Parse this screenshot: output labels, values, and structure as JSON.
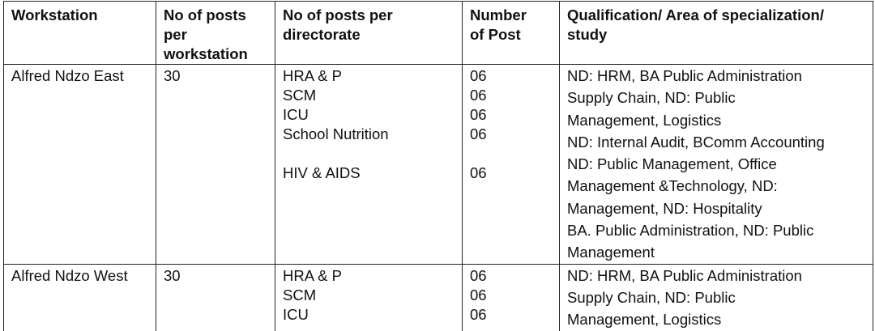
{
  "table": {
    "header": [
      [
        "Workstation"
      ],
      [
        "No of posts",
        "per",
        "workstation"
      ],
      [
        "No of posts per",
        "directorate"
      ],
      [
        "Number",
        "of Post"
      ],
      [
        "Qualification/ Area of specialization/",
        "study"
      ]
    ],
    "rows": [
      {
        "workstation": "Alfred Ndzo East",
        "posts": "30",
        "directorates": [
          "HRA & P",
          "SCM",
          "ICU",
          "School Nutrition",
          "HIV & AIDS"
        ],
        "numbers": [
          "06",
          "06",
          "06",
          "06",
          "06"
        ],
        "qualifications": [
          "ND: HRM, BA Public Administration",
          "Supply Chain, ND: Public",
          "Management, Logistics",
          "ND:  Internal Audit, BComm Accounting",
          "ND: Public Management, Office",
          "Management &Technology, ND:",
          "Management, ND: Hospitality",
          "BA. Public Administration, ND: Public",
          "Management"
        ]
      },
      {
        "workstation": "Alfred Ndzo West",
        "posts": "30",
        "directorates": [
          "HRA & P",
          "SCM",
          "ICU"
        ],
        "numbers": [
          "06",
          "06",
          "06"
        ],
        "qualifications": [
          "ND: HRM, BA Public Administration",
          "Supply Chain, ND: Public",
          "Management, Logistics"
        ]
      }
    ]
  }
}
